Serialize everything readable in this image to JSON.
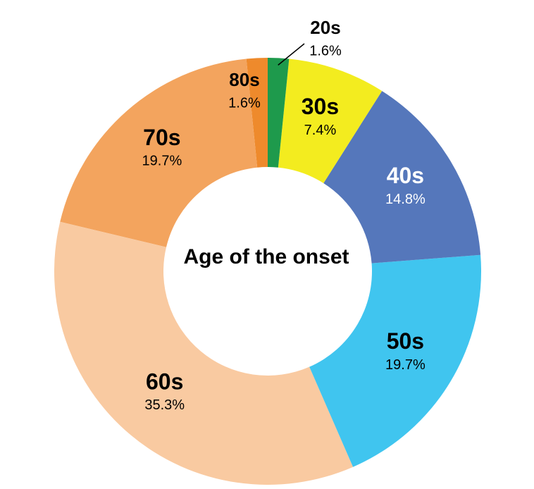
{
  "chart_data": {
    "type": "donut",
    "title": "Age of the onset",
    "categories": [
      "20s",
      "30s",
      "40s",
      "50s",
      "60s",
      "70s",
      "80s"
    ],
    "values": [
      1.6,
      7.4,
      14.8,
      19.7,
      35.3,
      19.7,
      1.6
    ],
    "value_labels": [
      "1.6%",
      "7.4%",
      "14.8%",
      "19.7%",
      "35.3%",
      "19.7%",
      "1.6%"
    ],
    "colors": [
      "#1e9a4c",
      "#f3ec1f",
      "#5577bb",
      "#40c5ef",
      "#f9caa1",
      "#f3a45e",
      "#ee8a2c"
    ]
  }
}
